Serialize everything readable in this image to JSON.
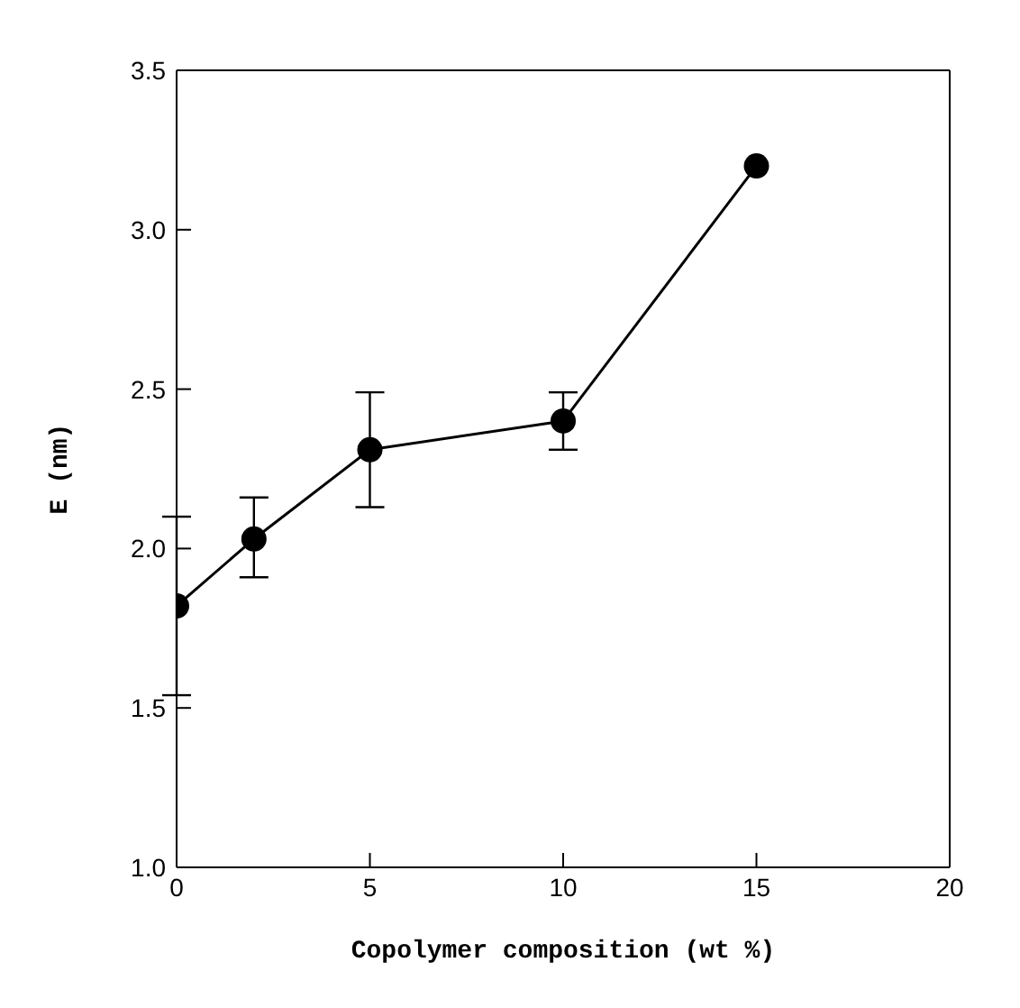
{
  "chart_data": {
    "type": "line",
    "xlabel": "Copolymer composition (wt %)",
    "ylabel": "E (nm)",
    "x": [
      0,
      2,
      5,
      10,
      15
    ],
    "series": [
      {
        "color": "#000000",
        "values": [
          1.82,
          2.03,
          2.31,
          2.4,
          3.2
        ],
        "errors": [
          [
            1.54,
            2.1
          ],
          [
            1.91,
            2.16
          ],
          [
            2.13,
            2.49
          ],
          [
            2.31,
            2.49
          ],
          null
        ]
      }
    ],
    "xlim": [
      0,
      20
    ],
    "xticks": [
      0,
      5,
      10,
      15,
      20
    ],
    "ylim": [
      1,
      3.5
    ],
    "yticks": [
      {
        "value": 1,
        "label": "1.0"
      },
      {
        "value": 1.5,
        "label": "1.5"
      },
      {
        "value": 2,
        "label": "2.0"
      },
      {
        "value": 2.5,
        "label": "2.5"
      },
      {
        "value": 3,
        "label": "3.0"
      },
      {
        "value": 3.5,
        "label": "3.5"
      }
    ],
    "marker": "circle",
    "line_style": "solid",
    "grid": false
  }
}
